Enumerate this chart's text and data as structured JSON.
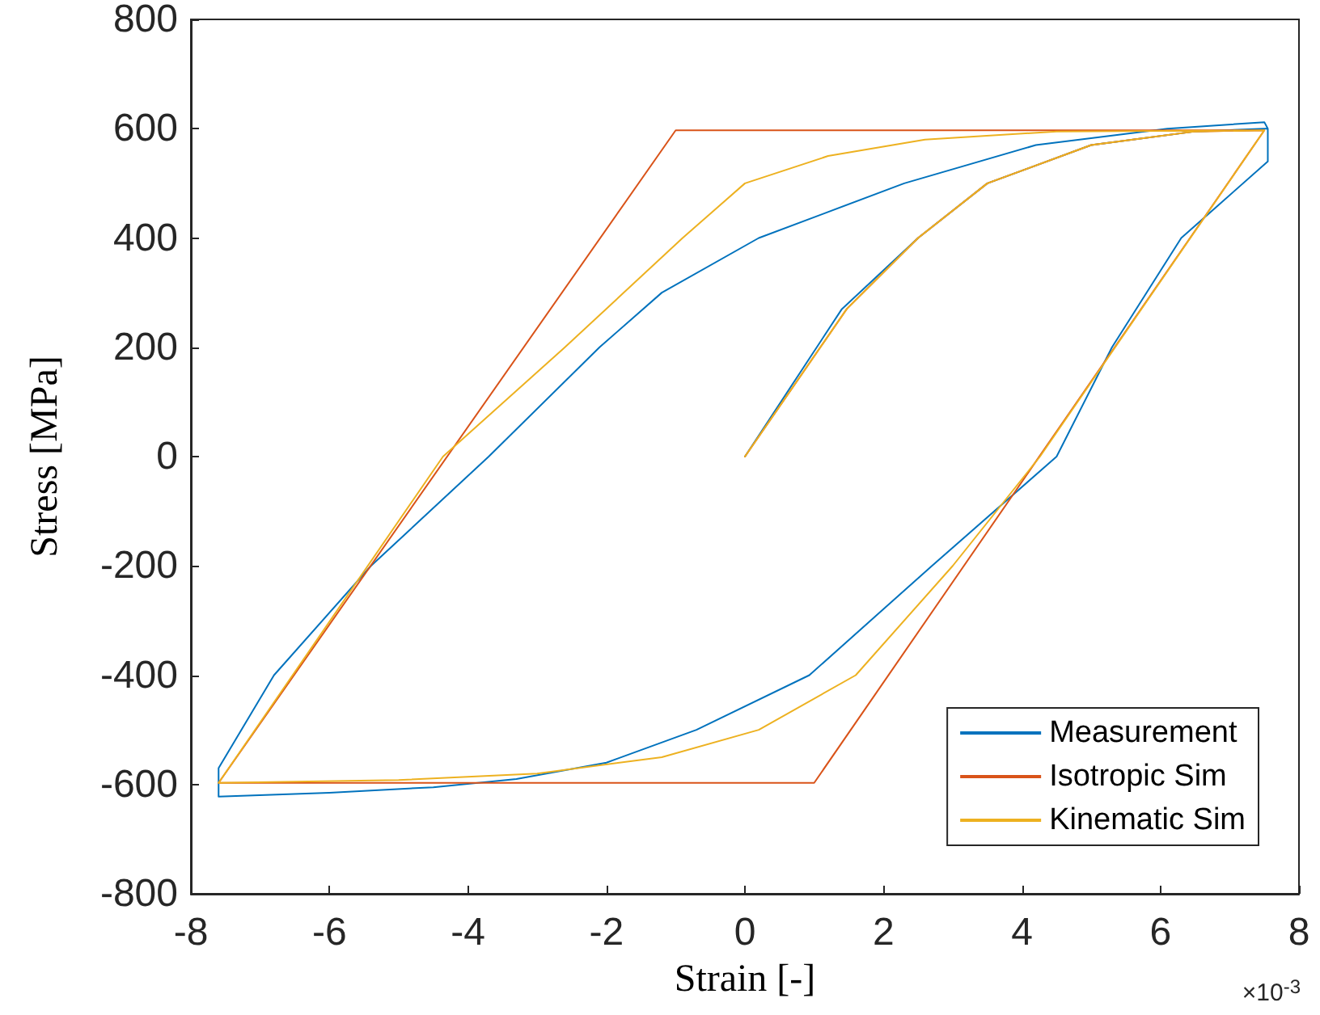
{
  "chart_data": {
    "type": "line",
    "xlabel": "Strain [-]",
    "ylabel": "Stress [MPa]",
    "xlim": [
      -8,
      8
    ],
    "xticks": [
      -8,
      -6,
      -4,
      -2,
      0,
      2,
      4,
      6,
      8
    ],
    "ylim": [
      -800,
      800
    ],
    "yticks": [
      -800,
      -600,
      -400,
      -200,
      0,
      200,
      400,
      600,
      800
    ],
    "grid": false,
    "legend": "bottom right",
    "marker": "none",
    "line_style": "solid",
    "annotations": [
      "×10$^{-3}$"
    ],
    "series": [
      {
        "name": "Measurement",
        "color": "#0072bd",
        "x": [
          0,
          1.4,
          2.5,
          3.5,
          5,
          6.5,
          7.5,
          7.55,
          7.55,
          6.3,
          5.3,
          4.5,
          2.7,
          0.93,
          -0.7,
          -2,
          -3.3,
          -4.5,
          -6,
          -7.6,
          -7.6,
          -6.8,
          -5.4,
          -3.7,
          -2.1,
          -1.2,
          0.2,
          2.3,
          4.2,
          6.1,
          7.5,
          7.55
        ],
        "values": [
          0,
          270,
          400,
          500,
          570,
          595,
          600,
          600,
          540,
          400,
          200,
          0,
          -200,
          -400,
          -500,
          -560,
          -590,
          -605,
          -615,
          -622,
          -570,
          -400,
          -200,
          0,
          200,
          300,
          400,
          500,
          570,
          600,
          612,
          600
        ]
      },
      {
        "name": "Isotropic Sim",
        "color": "#d95319",
        "x": [
          0,
          1.47,
          2.5,
          3.5,
          5,
          6.5,
          7.5,
          1.0,
          -7.6,
          -1.0,
          7.5
        ],
        "values": [
          0,
          270,
          400,
          500,
          570,
          595,
          597,
          -597,
          -597,
          597,
          597
        ]
      },
      {
        "name": "Kinematic Sim",
        "color": "#edb120",
        "x": [
          0,
          1.47,
          2.5,
          3.5,
          5,
          6.5,
          7.5,
          4.26,
          3.0,
          1.6,
          0.2,
          -1.2,
          -3,
          -5,
          -7.6,
          -4.36,
          -2.6,
          -0.9,
          0,
          1.2,
          2.6,
          4.5,
          7.5
        ],
        "values": [
          0,
          270,
          400,
          500,
          570,
          595,
          597,
          0,
          -200,
          -400,
          -500,
          -550,
          -580,
          -592,
          -597,
          0,
          200,
          400,
          500,
          550,
          580,
          595,
          597
        ]
      }
    ]
  }
}
